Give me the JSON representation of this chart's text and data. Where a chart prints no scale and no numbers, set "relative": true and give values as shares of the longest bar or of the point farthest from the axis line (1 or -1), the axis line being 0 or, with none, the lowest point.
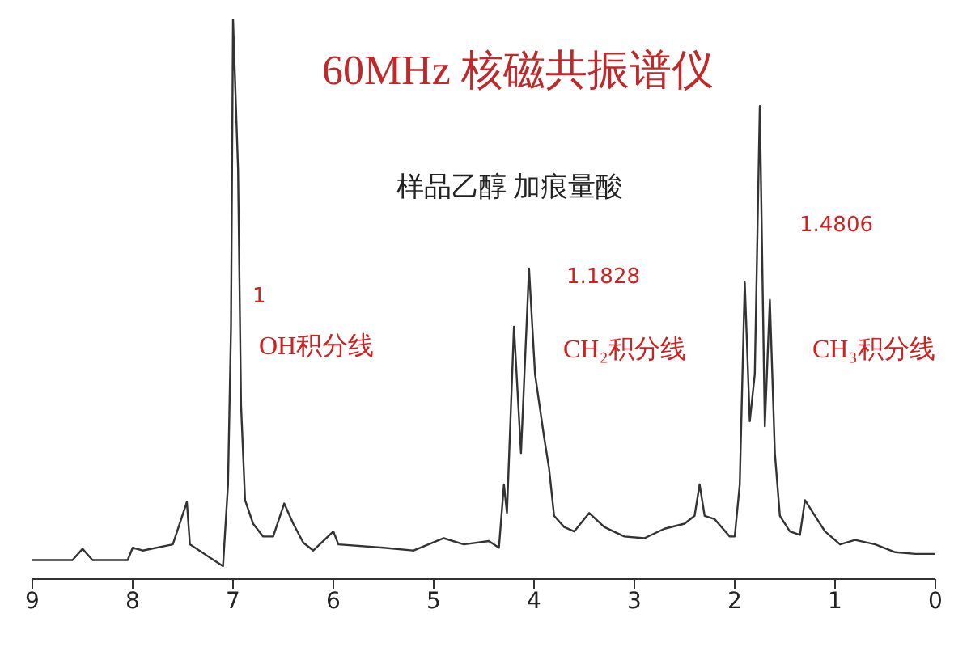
{
  "chart_data": {
    "type": "line",
    "title": "60MHz 核磁共振谱仪",
    "subtitle": "样品乙醇 加痕量酸",
    "relative": true,
    "grid": false,
    "legend": false,
    "marker": "none",
    "line_style": "solid",
    "tick_labels": "x",
    "xlim": [
      9,
      0
    ],
    "xticks": [
      9,
      8,
      7,
      6,
      5,
      4,
      3,
      2,
      1,
      0
    ],
    "series": [
      {
        "color": "#333333",
        "x": [
          9.0,
          8.6,
          8.5,
          8.4,
          8.05,
          8.0,
          7.9,
          7.6,
          7.46,
          7.43,
          7.1,
          7.05,
          7.02,
          7.0,
          6.95,
          6.92,
          6.88,
          6.8,
          6.7,
          6.6,
          6.49,
          6.4,
          6.3,
          6.2,
          6.0,
          5.95,
          5.5,
          5.2,
          4.9,
          4.7,
          4.45,
          4.35,
          4.3,
          4.27,
          4.2,
          4.13,
          4.05,
          3.99,
          3.9,
          3.85,
          3.8,
          3.7,
          3.6,
          3.45,
          3.3,
          3.1,
          2.9,
          2.7,
          2.5,
          2.4,
          2.35,
          2.3,
          2.2,
          2.05,
          2.0,
          1.95,
          1.9,
          1.85,
          1.8,
          1.75,
          1.7,
          1.65,
          1.6,
          1.55,
          1.45,
          1.35,
          1.3,
          1.2,
          1.1,
          0.95,
          0.8,
          0.6,
          0.4,
          0.2,
          0.0
        ],
        "values": [
          0.034,
          0.034,
          0.054,
          0.034,
          0.034,
          0.056,
          0.051,
          0.062,
          0.138,
          0.062,
          0.023,
          0.169,
          0.451,
          1,
          0.732,
          0.31,
          0.141,
          0.099,
          0.076,
          0.076,
          0.135,
          0.099,
          0.065,
          0.051,
          0.085,
          0.062,
          0.056,
          0.051,
          0.073,
          0.062,
          0.068,
          0.056,
          0.169,
          0.118,
          0.451,
          0.225,
          0.555,
          0.366,
          0.254,
          0.197,
          0.113,
          0.093,
          0.085,
          0.118,
          0.093,
          0.076,
          0.073,
          0.09,
          0.099,
          0.113,
          0.169,
          0.113,
          0.107,
          0.076,
          0.076,
          0.169,
          0.53,
          0.282,
          0.366,
          0.845,
          0.273,
          0.499,
          0.225,
          0.113,
          0.085,
          0.079,
          0.141,
          0.113,
          0.085,
          0.062,
          0.07,
          0.062,
          0.048,
          0.045,
          0.045
        ]
      }
    ],
    "annotations": [
      "1",
      "OH积分线",
      "1.1828",
      "CH₂积分线",
      "1.4806",
      "CH₃积分线"
    ]
  }
}
